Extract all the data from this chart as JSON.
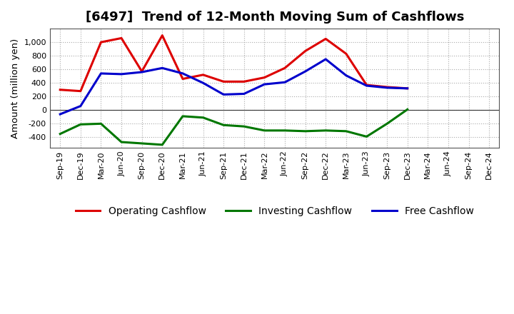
{
  "title": "[6497]  Trend of 12-Month Moving Sum of Cashflows",
  "ylabel": "Amount (million yen)",
  "x_labels": [
    "Sep-19",
    "Dec-19",
    "Mar-20",
    "Jun-20",
    "Sep-20",
    "Dec-20",
    "Mar-21",
    "Jun-21",
    "Sep-21",
    "Dec-21",
    "Mar-22",
    "Jun-22",
    "Sep-22",
    "Dec-22",
    "Mar-23",
    "Jun-23",
    "Sep-23",
    "Dec-23",
    "Mar-24",
    "Jun-24",
    "Sep-24",
    "Dec-24"
  ],
  "operating": [
    300,
    280,
    1000,
    1060,
    570,
    1100,
    460,
    520,
    420,
    420,
    480,
    620,
    870,
    1050,
    830,
    370,
    340,
    320,
    null,
    null,
    null,
    null
  ],
  "investing": [
    -350,
    -210,
    -200,
    -470,
    -490,
    -510,
    -90,
    -110,
    -220,
    -240,
    -300,
    -300,
    -310,
    -300,
    -310,
    -390,
    -200,
    10,
    null,
    null,
    null,
    null
  ],
  "free": [
    -60,
    60,
    540,
    530,
    560,
    620,
    540,
    400,
    230,
    240,
    380,
    410,
    570,
    750,
    510,
    360,
    330,
    320,
    null,
    null,
    null,
    null
  ],
  "ylim": [
    -550,
    1200
  ],
  "yticks": [
    -400,
    -200,
    0,
    200,
    400,
    600,
    800,
    1000
  ],
  "operating_color": "#dd0000",
  "investing_color": "#007700",
  "free_color": "#0000cc",
  "bg_color": "#ffffff",
  "plot_bg_color": "#ffffff",
  "grid_color": "#aaaaaa",
  "line_width": 2.2,
  "title_fontsize": 13,
  "legend_fontsize": 10,
  "tick_fontsize": 8
}
